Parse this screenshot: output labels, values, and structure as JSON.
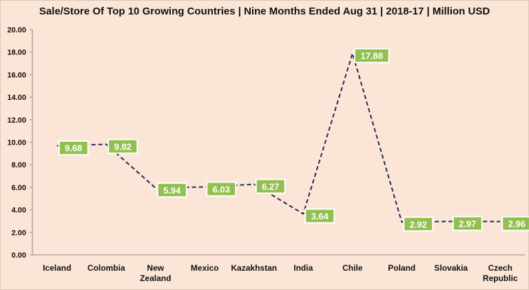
{
  "chart_data": {
    "type": "line",
    "title": "Sale/Store Of Top 10 Growing Countries | Nine Months Ended Aug 31 | 2018-17 | Million USD",
    "categories": [
      [
        "Iceland"
      ],
      [
        "Colombia"
      ],
      [
        "New",
        "Zealand"
      ],
      [
        "Mexico"
      ],
      [
        "Kazakhstan"
      ],
      [
        "India"
      ],
      [
        "Chile"
      ],
      [
        "Poland"
      ],
      [
        "Slovakia"
      ],
      [
        "Czech",
        "Republic"
      ]
    ],
    "values": [
      9.68,
      9.82,
      5.94,
      6.03,
      6.27,
      3.64,
      17.88,
      2.92,
      2.97,
      2.96
    ],
    "data_labels": [
      "9.68",
      "9.82",
      "5.94",
      "6.03",
      "6.27",
      "3.64",
      "17.88",
      "2.92",
      "2.97",
      "2.96"
    ],
    "y_ticks": [
      "0.00",
      "2.00",
      "4.00",
      "6.00",
      "8.00",
      "10.00",
      "12.00",
      "14.00",
      "16.00",
      "18.00",
      "20.00"
    ],
    "ylim": [
      0,
      20
    ],
    "grid": false,
    "legend": "none",
    "line_color": "#1f2a5c",
    "line_style": "dashed",
    "label_box_color": "#92c050",
    "label_text_color": "#ffffff",
    "background_color": "#fbe5d6"
  }
}
